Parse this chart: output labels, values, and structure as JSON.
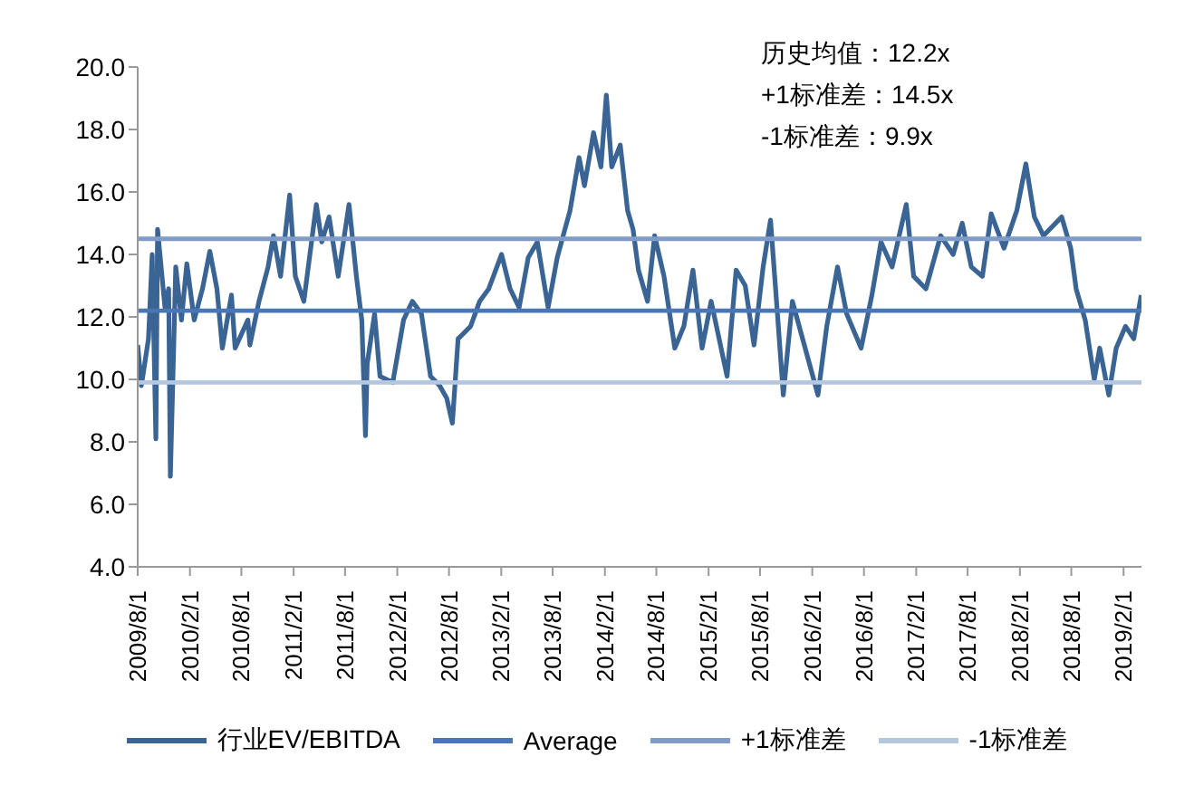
{
  "chart_data": {
    "type": "line",
    "xlim": [
      "2009-08-01",
      "2019-04-05"
    ],
    "xticks": [
      {
        "value": "2009-08-01",
        "label": "2009/8/1"
      },
      {
        "value": "2010-02-01",
        "label": "2010/2/1"
      },
      {
        "value": "2010-08-01",
        "label": "2010/8/1"
      },
      {
        "value": "2011-02-01",
        "label": "2011/2/1"
      },
      {
        "value": "2011-08-01",
        "label": "2011/8/1"
      },
      {
        "value": "2012-02-01",
        "label": "2012/2/1"
      },
      {
        "value": "2012-08-01",
        "label": "2012/8/1"
      },
      {
        "value": "2013-02-01",
        "label": "2013/2/1"
      },
      {
        "value": "2013-08-01",
        "label": "2013/8/1"
      },
      {
        "value": "2014-02-01",
        "label": "2014/2/1"
      },
      {
        "value": "2014-08-01",
        "label": "2014/8/1"
      },
      {
        "value": "2015-02-01",
        "label": "2015/2/1"
      },
      {
        "value": "2015-08-01",
        "label": "2015/8/1"
      },
      {
        "value": "2016-02-01",
        "label": "2016/2/1"
      },
      {
        "value": "2016-08-01",
        "label": "2016/8/1"
      },
      {
        "value": "2017-02-01",
        "label": "2017/2/1"
      },
      {
        "value": "2017-08-01",
        "label": "2017/8/1"
      },
      {
        "value": "2018-02-01",
        "label": "2018/2/1"
      },
      {
        "value": "2018-08-01",
        "label": "2018/8/1"
      },
      {
        "value": "2019-02-01",
        "label": "2019/2/1"
      }
    ],
    "ylim": [
      4,
      20
    ],
    "yticks": [
      {
        "value": 4,
        "label": "4.0"
      },
      {
        "value": 6,
        "label": "6.0"
      },
      {
        "value": 8,
        "label": "8.0"
      },
      {
        "value": 10,
        "label": "10.0"
      },
      {
        "value": 12,
        "label": "12.0"
      },
      {
        "value": 14,
        "label": "14.0"
      },
      {
        "value": 16,
        "label": "16.0"
      },
      {
        "value": 18,
        "label": "18.0"
      },
      {
        "value": 20,
        "label": "20.0"
      }
    ],
    "grid": false,
    "legend": "bottom",
    "marker": "none",
    "annotations": [
      "历史均值：12.2x",
      "+1标准差：14.5x",
      "-1标准差：9.9x"
    ],
    "series": [
      {
        "name": "行业EV/EBITDA",
        "color": "#3a6494",
        "x": [
          "2009-08-01",
          "2009-08-14",
          "2009-09-08",
          "2009-09-21",
          "2009-10-04",
          "2009-10-10",
          "2009-11-05",
          "2009-11-18",
          "2009-11-24",
          "2009-12-13",
          "2010-01-02",
          "2010-01-21",
          "2010-02-16",
          "2010-03-17",
          "2010-04-12",
          "2010-05-07",
          "2010-05-26",
          "2010-06-27",
          "2010-07-10",
          "2010-08-24",
          "2010-08-31",
          "2010-10-02",
          "2010-11-03",
          "2010-11-22",
          "2010-12-17",
          "2011-01-18",
          "2011-02-07",
          "2011-03-09",
          "2011-04-22",
          "2011-05-11",
          "2011-06-06",
          "2011-07-08",
          "2011-08-15",
          "2011-09-10",
          "2011-09-29",
          "2011-10-12",
          "2011-10-18",
          "2011-11-13",
          "2011-12-02",
          "2012-01-16",
          "2012-02-23",
          "2012-03-25",
          "2012-04-26",
          "2012-05-28",
          "2012-06-29",
          "2012-07-24",
          "2012-08-13",
          "2012-09-02",
          "2012-10-16",
          "2012-11-17",
          "2012-12-19",
          "2013-02-02",
          "2013-03-04",
          "2013-04-05",
          "2013-05-07",
          "2013-06-08",
          "2013-07-16",
          "2013-08-17",
          "2013-10-01",
          "2013-11-02",
          "2013-11-21",
          "2013-12-23",
          "2014-01-18",
          "2014-02-06",
          "2014-02-25",
          "2014-03-27",
          "2014-04-22",
          "2014-05-11",
          "2014-05-30",
          "2014-07-01",
          "2014-07-26",
          "2014-08-28",
          "2014-10-05",
          "2014-11-06",
          "2014-12-08",
          "2015-01-09",
          "2015-02-10",
          "2015-04-07",
          "2015-05-09",
          "2015-06-10",
          "2015-07-11",
          "2015-08-12",
          "2015-09-07",
          "2015-10-03",
          "2015-10-22",
          "2015-11-23",
          "2016-01-07",
          "2016-02-21",
          "2016-03-23",
          "2016-04-30",
          "2016-06-01",
          "2016-07-22",
          "2016-08-29",
          "2016-09-30",
          "2016-11-08",
          "2016-12-28",
          "2017-01-23",
          "2017-03-07",
          "2017-04-28",
          "2017-06-11",
          "2017-07-13",
          "2017-08-14",
          "2017-09-22",
          "2017-10-23",
          "2017-12-07",
          "2018-01-21",
          "2018-02-22",
          "2018-03-24",
          "2018-04-25",
          "2018-06-28",
          "2018-07-30",
          "2018-08-18",
          "2018-09-19",
          "2018-10-21",
          "2018-11-09",
          "2018-12-11",
          "2019-01-06",
          "2019-02-08",
          "2019-03-09",
          "2019-04-04"
        ],
        "values": [
          11.1,
          9.8,
          11.3,
          14.0,
          8.1,
          14.8,
          12.3,
          12.9,
          6.9,
          13.6,
          11.9,
          13.7,
          11.9,
          12.9,
          14.1,
          12.9,
          11.0,
          12.7,
          11.0,
          11.9,
          11.1,
          12.5,
          13.6,
          14.6,
          13.3,
          15.9,
          13.3,
          12.5,
          15.6,
          14.4,
          15.2,
          13.3,
          15.6,
          13.3,
          11.9,
          8.2,
          10.5,
          12.1,
          10.1,
          9.9,
          11.9,
          12.5,
          12.1,
          10.1,
          9.8,
          9.4,
          8.6,
          11.3,
          11.7,
          12.5,
          12.9,
          14.0,
          12.9,
          12.3,
          13.9,
          14.4,
          12.3,
          13.9,
          15.4,
          17.1,
          16.2,
          17.9,
          16.8,
          19.1,
          16.8,
          17.5,
          15.4,
          14.8,
          13.5,
          12.5,
          14.6,
          13.3,
          11.0,
          11.7,
          13.5,
          11.0,
          12.5,
          10.1,
          13.5,
          13.0,
          11.1,
          13.6,
          15.1,
          11.9,
          9.5,
          12.5,
          11.0,
          9.5,
          11.7,
          13.6,
          12.1,
          11.0,
          12.7,
          14.4,
          13.6,
          15.6,
          13.3,
          12.9,
          14.6,
          14.0,
          15.0,
          13.6,
          13.3,
          15.3,
          14.2,
          15.4,
          16.9,
          15.2,
          14.6,
          15.2,
          14.2,
          12.9,
          11.9,
          10.0,
          11.0,
          9.5,
          11.0,
          11.7,
          11.3,
          12.7
        ]
      },
      {
        "name": "Average",
        "color": "#4a76b4",
        "x": [
          "2009-08-01",
          "2019-04-05"
        ],
        "values": [
          12.2,
          12.2
        ]
      },
      {
        "name": "+1标准差",
        "color": "#7f9cc9",
        "x": [
          "2009-08-01",
          "2019-04-05"
        ],
        "values": [
          14.5,
          14.5
        ]
      },
      {
        "name": "-1标准差",
        "color": "#b5c6df",
        "x": [
          "2009-08-01",
          "2019-04-05"
        ],
        "values": [
          9.9,
          9.9
        ]
      }
    ]
  }
}
